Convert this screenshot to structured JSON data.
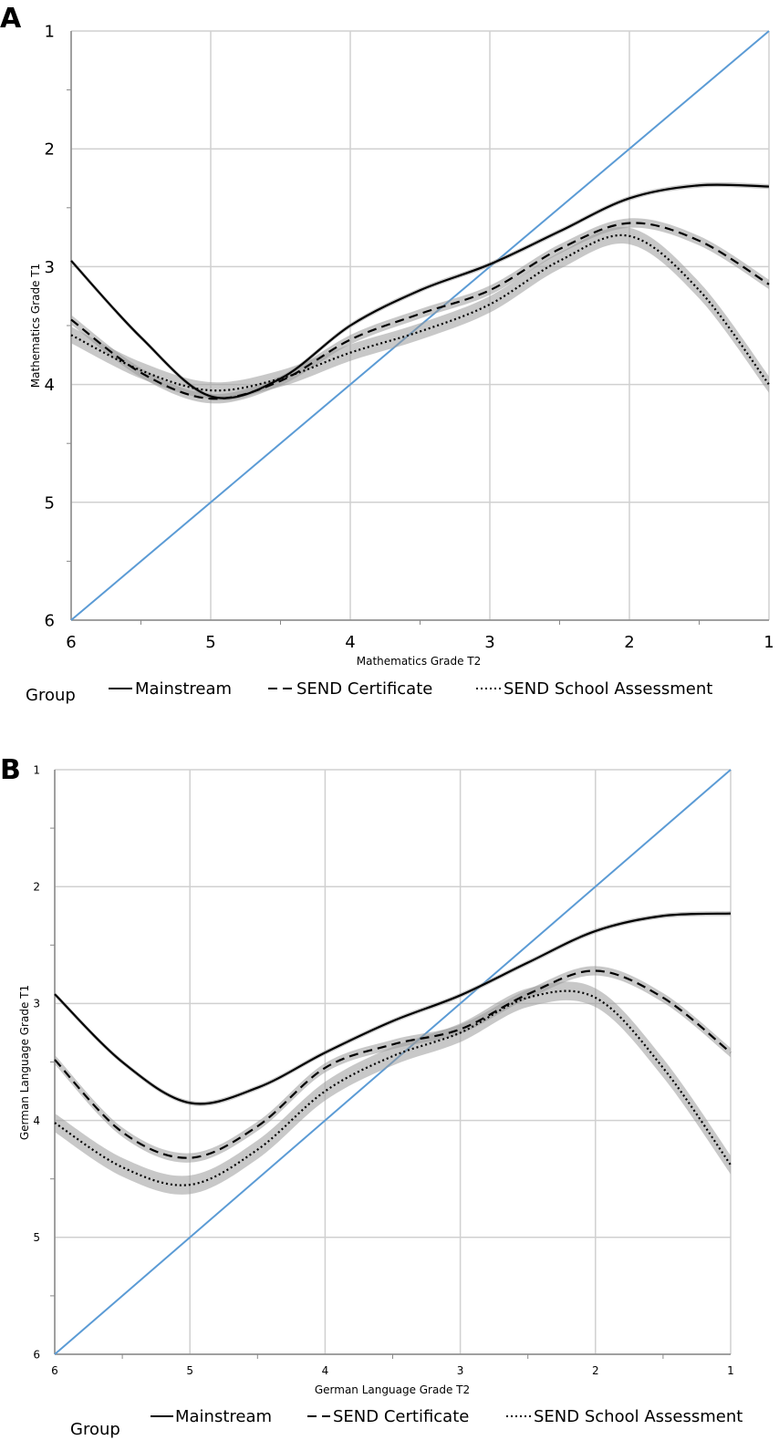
{
  "chart_data": [
    {
      "panel": "A",
      "type": "line",
      "title": "",
      "xlabel": "Mathematics Grade T2",
      "ylabel": "Mathematics Grade T1",
      "x_ticks": [
        "6",
        "5",
        "4",
        "3",
        "2",
        "1"
      ],
      "y_ticks": [
        "1",
        "2",
        "3",
        "4",
        "5",
        "6"
      ],
      "xlim": [
        6,
        1
      ],
      "ylim": [
        1,
        6
      ],
      "grid": true,
      "legend_title": "Group",
      "reference_line": {
        "name": "y = x",
        "x": [
          6,
          1
        ],
        "y": [
          6,
          1
        ],
        "color": "#5b9bd5"
      },
      "series": [
        {
          "name": "Mainstream",
          "style": "solid",
          "x": [
            6.0,
            5.5,
            5.0,
            4.5,
            4.0,
            3.5,
            3.0,
            2.5,
            2.0,
            1.5,
            1.0
          ],
          "y": [
            2.95,
            3.6,
            4.1,
            3.95,
            3.5,
            3.2,
            2.98,
            2.7,
            2.42,
            2.31,
            2.32
          ],
          "ci": 0.02
        },
        {
          "name": "SEND Certificate",
          "style": "dashed",
          "x": [
            6.0,
            5.5,
            5.0,
            4.5,
            4.0,
            3.5,
            3.0,
            2.5,
            2.0,
            1.5,
            1.0
          ],
          "y": [
            3.45,
            3.9,
            4.12,
            3.97,
            3.62,
            3.4,
            3.2,
            2.85,
            2.63,
            2.78,
            3.15
          ],
          "ci": 0.04
        },
        {
          "name": "SEND School Assessment",
          "style": "dotted",
          "x": [
            6.0,
            5.5,
            5.0,
            4.5,
            4.0,
            3.5,
            3.0,
            2.5,
            2.0,
            1.5,
            1.0
          ],
          "y": [
            3.58,
            3.88,
            4.05,
            3.95,
            3.73,
            3.55,
            3.32,
            2.95,
            2.74,
            3.2,
            4.0
          ],
          "ci": 0.07
        }
      ]
    },
    {
      "panel": "B",
      "type": "line",
      "title": "",
      "xlabel": "German Language Grade T2",
      "ylabel": "German Language Grade T1",
      "x_ticks": [
        "6",
        "5",
        "4",
        "3",
        "2",
        "1"
      ],
      "y_ticks": [
        "1",
        "2",
        "3",
        "4",
        "5",
        "6"
      ],
      "xlim": [
        6,
        1
      ],
      "ylim": [
        1,
        6
      ],
      "grid": true,
      "legend_title": "Group",
      "reference_line": {
        "name": "y = x",
        "x": [
          6,
          1
        ],
        "y": [
          6,
          1
        ],
        "color": "#5b9bd5"
      },
      "series": [
        {
          "name": "Mainstream",
          "style": "solid",
          "x": [
            6.0,
            5.5,
            5.0,
            4.5,
            4.0,
            3.5,
            3.0,
            2.5,
            2.0,
            1.5,
            1.0
          ],
          "y": [
            2.92,
            3.5,
            3.85,
            3.72,
            3.42,
            3.15,
            2.93,
            2.65,
            2.38,
            2.25,
            2.23
          ],
          "ci": 0.02
        },
        {
          "name": "SEND Certificate",
          "style": "dashed",
          "x": [
            6.0,
            5.5,
            5.0,
            4.5,
            4.0,
            3.5,
            3.0,
            2.5,
            2.0,
            1.5,
            1.0
          ],
          "y": [
            3.48,
            4.1,
            4.32,
            4.05,
            3.55,
            3.35,
            3.22,
            2.92,
            2.72,
            2.95,
            3.42
          ],
          "ci": 0.04
        },
        {
          "name": "SEND School Assessment",
          "style": "dotted",
          "x": [
            6.0,
            5.5,
            5.0,
            4.5,
            4.0,
            3.5,
            3.0,
            2.5,
            2.0,
            1.5,
            1.0
          ],
          "y": [
            4.02,
            4.4,
            4.55,
            4.25,
            3.75,
            3.45,
            3.25,
            2.95,
            2.95,
            3.55,
            4.38
          ],
          "ci": 0.08
        }
      ]
    }
  ]
}
